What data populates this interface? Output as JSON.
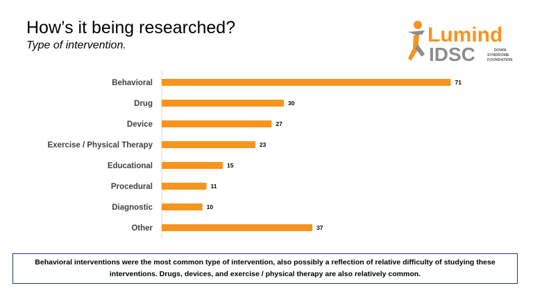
{
  "header": {
    "title": "How’s it being researched?",
    "subtitle": "Type of intervention."
  },
  "logo": {
    "top_word": "Lumind",
    "bottom_word": "IDSC",
    "tagline_lines": [
      "DOWN",
      "SYNDROME",
      "FOUNDATION"
    ],
    "colors": {
      "orange": "#f7941d",
      "gray": "#8c8c8c"
    }
  },
  "chart_data": {
    "type": "bar",
    "orientation": "horizontal",
    "categories": [
      "Behavioral",
      "Drug",
      "Device",
      "Exercise / Physical Therapy",
      "Educational",
      "Procedural",
      "Diagnostic",
      "Other"
    ],
    "values": [
      71,
      30,
      27,
      23,
      15,
      11,
      10,
      37
    ],
    "title": "",
    "xlabel": "",
    "ylabel": "",
    "xlim": [
      0,
      75
    ],
    "grid": false,
    "legend": "none",
    "bar_color": "#f7941d"
  },
  "callout": {
    "text": "Behavioral interventions were the most common type of intervention, also possibly a reflection of relative difficulty of studying these interventions. Drugs, devices, and exercise / physical therapy are also relatively common."
  }
}
